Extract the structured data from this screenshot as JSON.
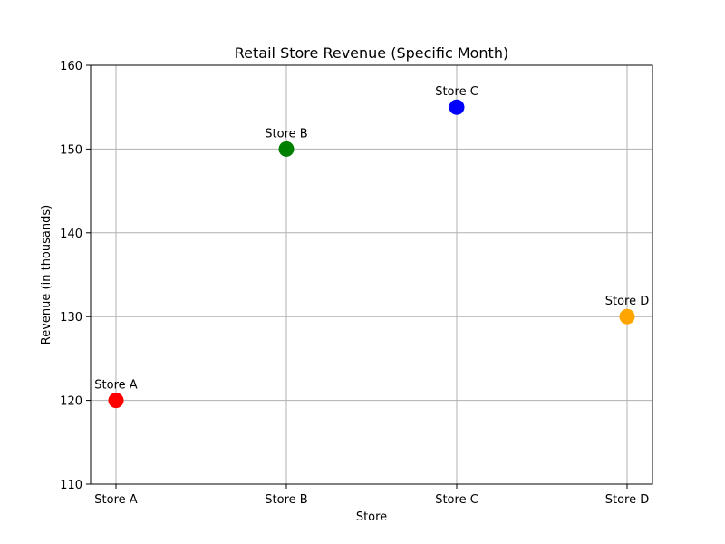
{
  "chart_data": {
    "type": "scatter",
    "title": "Retail Store Revenue (Specific Month)",
    "xlabel": "Store",
    "ylabel": "Revenue (in thousands)",
    "categories": [
      "Store A",
      "Store B",
      "Store C",
      "Store D"
    ],
    "values": [
      120,
      150,
      155,
      130
    ],
    "point_labels": [
      "Store A",
      "Store B",
      "Store C",
      "Store D"
    ],
    "colors": [
      "#ff0000",
      "#008000",
      "#0000ff",
      "#ffa500"
    ],
    "ylim": [
      110,
      160
    ],
    "yticks": [
      110,
      120,
      130,
      140,
      150,
      160
    ],
    "grid": true,
    "legend": false
  }
}
